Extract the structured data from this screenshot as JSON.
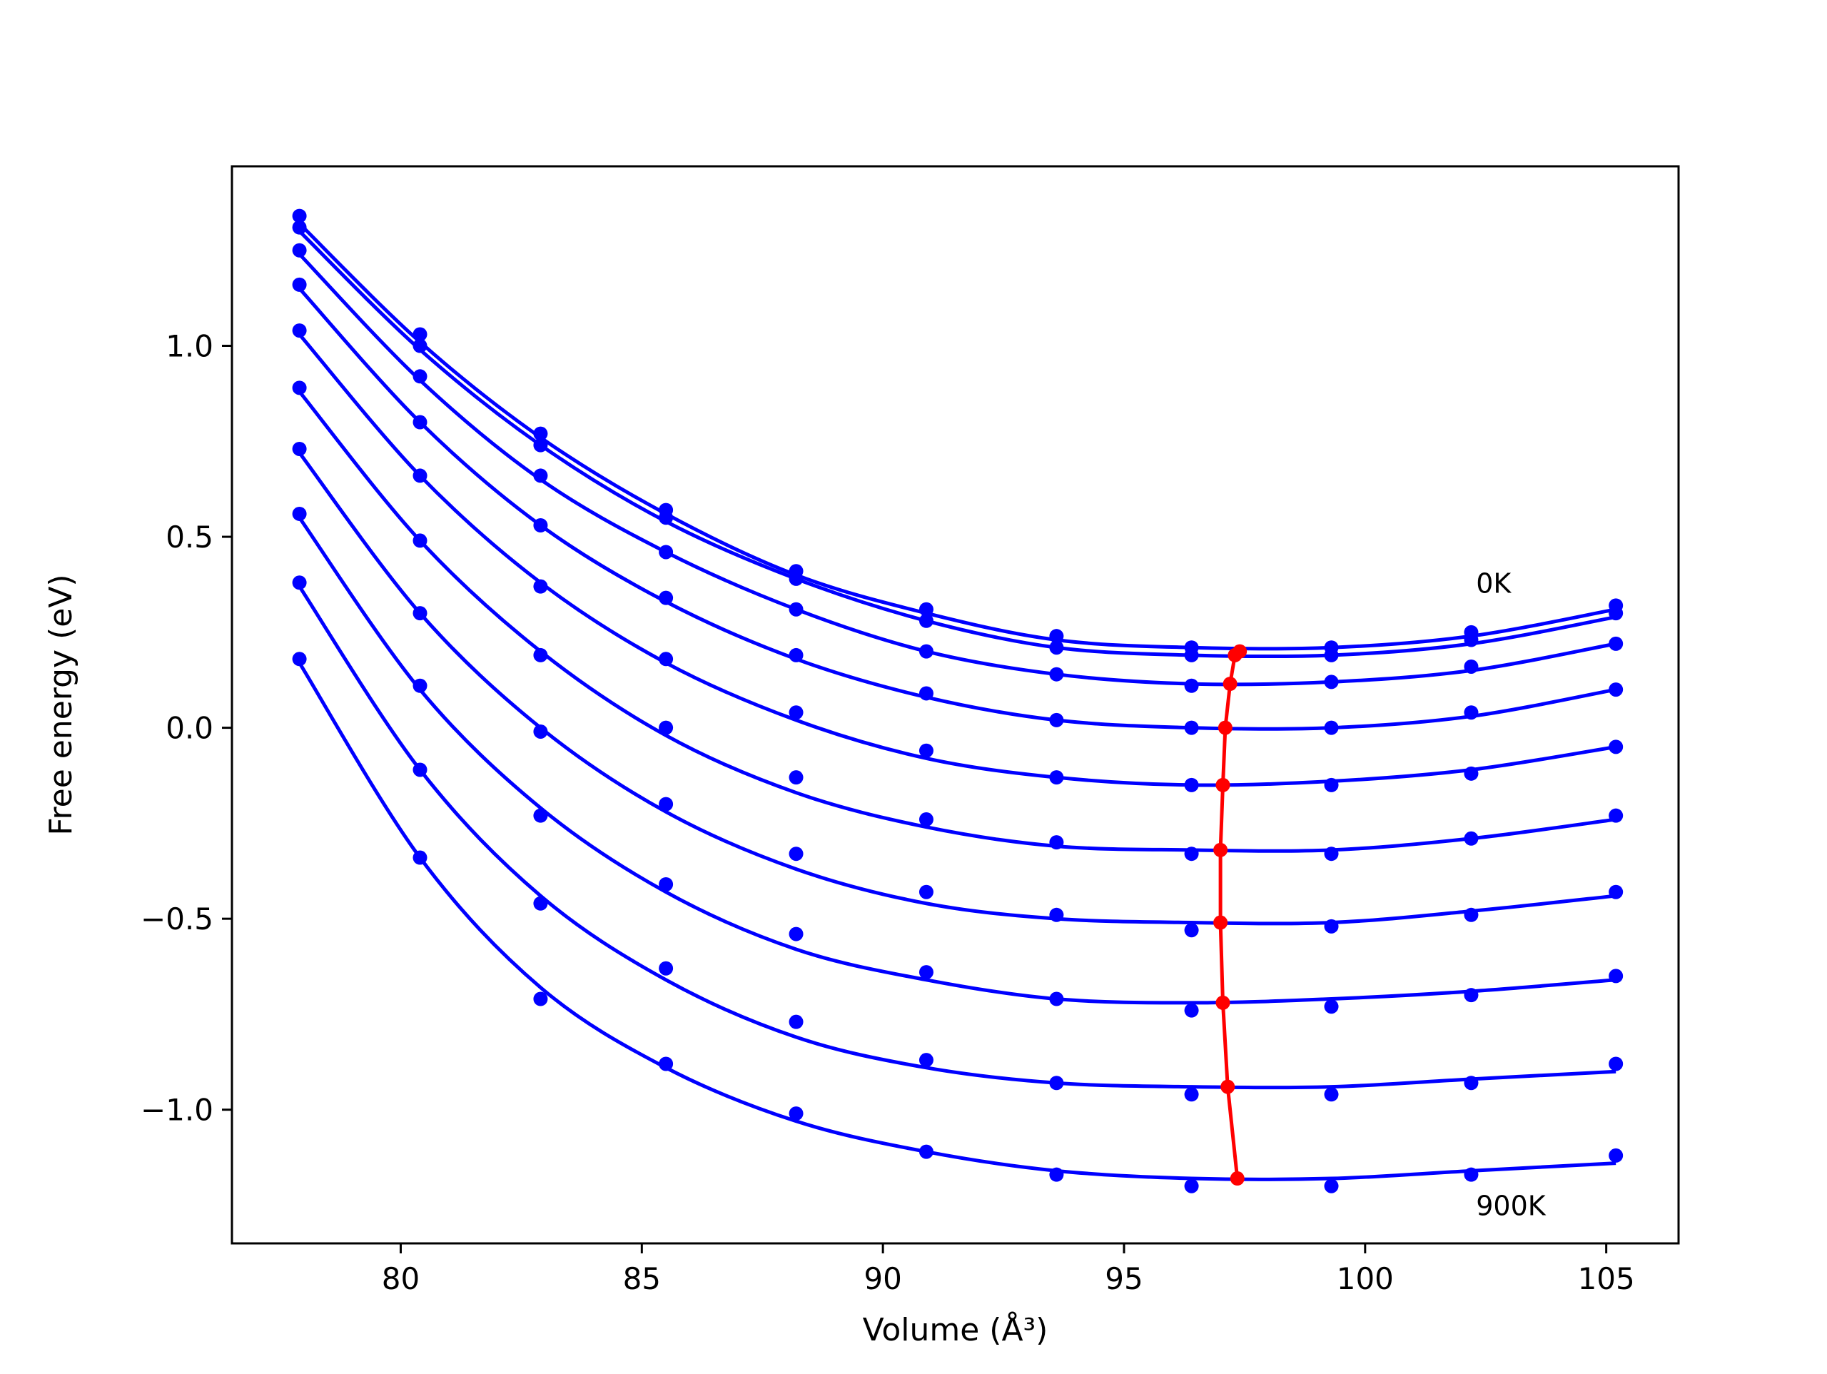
{
  "chart_data": {
    "type": "line",
    "title": "",
    "xlabel": "Volume (Å³)",
    "ylabel": "Free energy (eV)",
    "xlim": [
      76.5,
      106.5
    ],
    "ylim": [
      -1.35,
      1.47
    ],
    "xticks": [
      80,
      85,
      90,
      95,
      100,
      105
    ],
    "yticks": [
      -1.0,
      -0.5,
      0.0,
      0.5,
      1.0
    ],
    "xtick_labels": [
      "80",
      "85",
      "90",
      "95",
      "100",
      "105"
    ],
    "ytick_labels": [
      "−1.0",
      "−0.5",
      "0.0",
      "0.5",
      "1.0"
    ],
    "grid": false,
    "legend": "none",
    "fit_color": "#0000ff",
    "minimum_color": "#ff0000",
    "volumes": [
      77.9,
      80.4,
      82.9,
      85.5,
      88.2,
      90.9,
      93.6,
      96.4,
      99.3,
      102.2,
      105.2
    ],
    "series": [
      {
        "fit": [
          1.32,
          1.01,
          0.76,
          0.56,
          0.4,
          0.3,
          0.23,
          0.21,
          0.21,
          0.24,
          0.31
        ],
        "points": [
          1.34,
          1.03,
          0.77,
          0.57,
          0.41,
          0.31,
          0.24,
          0.21,
          0.21,
          0.25,
          0.32
        ]
      },
      {
        "fit": [
          1.3,
          0.99,
          0.74,
          0.54,
          0.39,
          0.28,
          0.21,
          0.19,
          0.19,
          0.22,
          0.29
        ],
        "points": [
          1.31,
          1.0,
          0.74,
          0.55,
          0.39,
          0.28,
          0.21,
          0.19,
          0.19,
          0.23,
          0.3
        ]
      },
      {
        "fit": [
          1.24,
          0.91,
          0.65,
          0.46,
          0.31,
          0.2,
          0.14,
          0.115,
          0.12,
          0.15,
          0.22
        ],
        "points": [
          1.25,
          0.92,
          0.66,
          0.46,
          0.31,
          0.2,
          0.14,
          0.11,
          0.12,
          0.16,
          0.22
        ]
      },
      {
        "fit": [
          1.15,
          0.8,
          0.53,
          0.33,
          0.18,
          0.08,
          0.02,
          0.0,
          0.0,
          0.03,
          0.1
        ],
        "points": [
          1.16,
          0.8,
          0.53,
          0.34,
          0.19,
          0.09,
          0.02,
          0.0,
          0.0,
          0.04,
          0.1
        ]
      },
      {
        "fit": [
          1.03,
          0.66,
          0.38,
          0.17,
          0.02,
          -0.08,
          -0.13,
          -0.15,
          -0.14,
          -0.11,
          -0.05
        ],
        "points": [
          1.04,
          0.66,
          0.37,
          0.18,
          0.04,
          -0.06,
          -0.13,
          -0.15,
          -0.15,
          -0.12,
          -0.05
        ]
      },
      {
        "fit": [
          0.88,
          0.49,
          0.2,
          -0.02,
          -0.17,
          -0.26,
          -0.31,
          -0.32,
          -0.32,
          -0.29,
          -0.24
        ],
        "points": [
          0.89,
          0.49,
          0.19,
          0.0,
          -0.13,
          -0.24,
          -0.3,
          -0.33,
          -0.33,
          -0.29,
          -0.23
        ]
      },
      {
        "fit": [
          0.72,
          0.3,
          0.0,
          -0.22,
          -0.37,
          -0.46,
          -0.5,
          -0.51,
          -0.51,
          -0.48,
          -0.44
        ],
        "points": [
          0.73,
          0.3,
          -0.01,
          -0.2,
          -0.33,
          -0.43,
          -0.49,
          -0.53,
          -0.52,
          -0.49,
          -0.43
        ]
      },
      {
        "fit": [
          0.55,
          0.1,
          -0.21,
          -0.43,
          -0.58,
          -0.66,
          -0.71,
          -0.72,
          -0.71,
          -0.69,
          -0.66
        ],
        "points": [
          0.56,
          0.11,
          -0.23,
          -0.41,
          -0.54,
          -0.64,
          -0.71,
          -0.74,
          -0.73,
          -0.7,
          -0.65
        ]
      },
      {
        "fit": [
          0.37,
          -0.11,
          -0.44,
          -0.66,
          -0.81,
          -0.89,
          -0.93,
          -0.94,
          -0.94,
          -0.92,
          -0.9
        ],
        "points": [
          0.38,
          -0.11,
          -0.46,
          -0.63,
          -0.77,
          -0.87,
          -0.93,
          -0.96,
          -0.96,
          -0.93,
          -0.88
        ]
      },
      {
        "fit": [
          0.17,
          -0.34,
          -0.68,
          -0.89,
          -1.03,
          -1.11,
          -1.16,
          -1.18,
          -1.18,
          -1.16,
          -1.14
        ],
        "points": [
          0.18,
          -0.34,
          -0.71,
          -0.88,
          -1.01,
          -1.11,
          -1.17,
          -1.2,
          -1.2,
          -1.17,
          -1.12
        ]
      }
    ],
    "minimum_curve": {
      "x": [
        97.4,
        97.3,
        97.2,
        97.1,
        97.05,
        97.0,
        97.0,
        97.05,
        97.15,
        97.35
      ],
      "y": [
        0.2,
        0.19,
        0.115,
        0.0,
        -0.15,
        -0.32,
        -0.51,
        -0.72,
        -0.94,
        -1.18
      ]
    },
    "annotations": [
      {
        "text": "0K",
        "x": 102.3,
        "y": 0.38
      },
      {
        "text": "900K",
        "x": 102.3,
        "y": -1.25
      }
    ]
  }
}
